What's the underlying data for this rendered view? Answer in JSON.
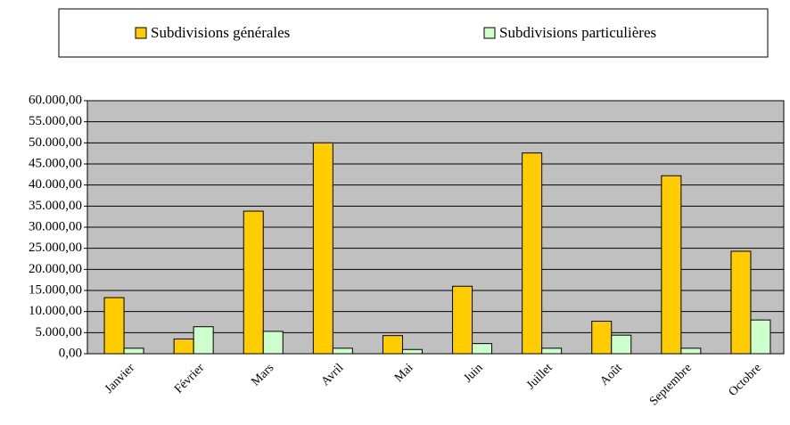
{
  "chart_data": {
    "type": "bar",
    "categories": [
      "Janvier",
      "Février",
      "Mars",
      "Avril",
      "Mai",
      "Juin",
      "Juillet",
      "Août",
      "Septembre",
      "Octobre"
    ],
    "series": [
      {
        "name": "Subdivisions générales",
        "color": "#ffcc00",
        "values": [
          13300,
          3500,
          33800,
          50000,
          4300,
          16000,
          47600,
          7700,
          42200,
          24300
        ]
      },
      {
        "name": "Subdivisions particulières",
        "color": "#ccffcc",
        "values": [
          1300,
          6400,
          5300,
          1300,
          1000,
          2400,
          1300,
          4400,
          1300,
          8000
        ]
      }
    ],
    "ylim": [
      0,
      60000
    ],
    "yticks": [
      {
        "value": 0,
        "label": "0,00"
      },
      {
        "value": 5000,
        "label": "5.000,00"
      },
      {
        "value": 10000,
        "label": "10.000,00"
      },
      {
        "value": 15000,
        "label": "15.000,00"
      },
      {
        "value": 20000,
        "label": "20.000,00"
      },
      {
        "value": 25000,
        "label": "25.000,00"
      },
      {
        "value": 30000,
        "label": "30.000,00"
      },
      {
        "value": 35000,
        "label": "35.000,00"
      },
      {
        "value": 40000,
        "label": "40.000,00"
      },
      {
        "value": 45000,
        "label": "45.000,00"
      },
      {
        "value": 50000,
        "label": "50.000,00"
      },
      {
        "value": 55000,
        "label": "55.000,00"
      },
      {
        "value": 60000,
        "label": "60.000,00"
      }
    ],
    "grid": true,
    "legend": "top"
  }
}
